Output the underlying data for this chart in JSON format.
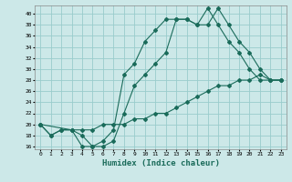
{
  "xlabel": "Humidex (Indice chaleur)",
  "background_color": "#cce8e8",
  "grid_color": "#99cccc",
  "line_color": "#1a6b5a",
  "x_ticks": [
    0,
    1,
    2,
    3,
    4,
    5,
    6,
    7,
    8,
    9,
    10,
    11,
    12,
    13,
    14,
    15,
    16,
    17,
    18,
    19,
    20,
    21,
    22,
    23
  ],
  "ylim": [
    15.5,
    41.5
  ],
  "xlim": [
    -0.5,
    23.5
  ],
  "yticks": [
    16,
    18,
    20,
    22,
    24,
    26,
    28,
    30,
    32,
    34,
    36,
    38,
    40
  ],
  "line1_x": [
    0,
    1,
    2,
    3,
    4,
    5,
    6,
    7,
    8,
    9,
    10,
    11,
    12,
    13,
    14,
    15,
    16,
    17,
    18,
    19,
    20,
    21,
    22,
    23
  ],
  "line1_y": [
    20,
    18,
    19,
    19,
    16,
    16,
    17,
    19,
    29,
    31,
    35,
    37,
    39,
    39,
    39,
    38,
    41,
    38,
    35,
    33,
    30,
    28,
    28,
    28
  ],
  "line2_x": [
    0,
    1,
    2,
    3,
    4,
    5,
    6,
    7,
    8,
    9,
    10,
    11,
    12,
    13,
    14,
    15,
    16,
    17,
    18,
    19,
    20,
    21,
    22,
    23
  ],
  "line2_y": [
    20,
    18,
    19,
    19,
    18,
    16,
    16,
    17,
    22,
    27,
    29,
    31,
    33,
    39,
    39,
    38,
    38,
    41,
    38,
    35,
    33,
    30,
    28,
    28
  ],
  "line3_x": [
    0,
    3,
    4,
    5,
    6,
    7,
    8,
    9,
    10,
    11,
    12,
    13,
    14,
    15,
    16,
    17,
    18,
    19,
    20,
    21,
    22,
    23
  ],
  "line3_y": [
    20,
    19,
    19,
    19,
    20,
    20,
    20,
    21,
    21,
    22,
    22,
    23,
    24,
    25,
    26,
    27,
    27,
    28,
    28,
    29,
    28,
    28
  ]
}
